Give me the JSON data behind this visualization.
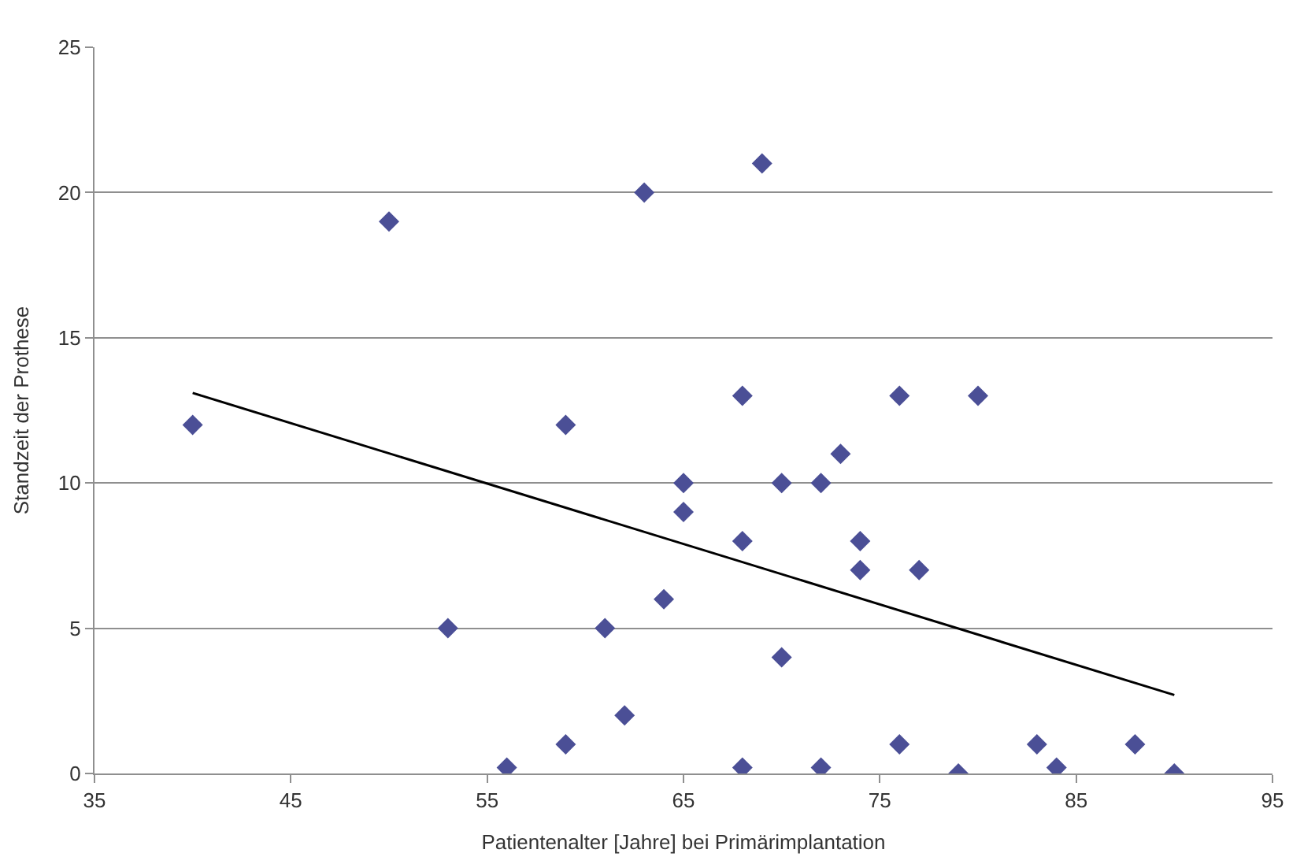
{
  "chart_data": {
    "type": "scatter",
    "xlabel": "Patientenalter [Jahre] bei Primärimplantation",
    "ylabel": "Standzeit der Prothese",
    "xlim": [
      35,
      95
    ],
    "xticks": [
      35,
      45,
      55,
      65,
      75,
      85,
      95
    ],
    "ylim": [
      0,
      25
    ],
    "yticks": [
      0,
      5,
      10,
      15,
      20,
      25
    ],
    "grid": "y",
    "marker": "diamond",
    "series": [
      {
        "color": "#4b4f96",
        "x": [
          40,
          50,
          53,
          56,
          59,
          59,
          61,
          62,
          63,
          64,
          65,
          65,
          68,
          68,
          68,
          69,
          70,
          70,
          72,
          72,
          73,
          74,
          74,
          76,
          76,
          77,
          79,
          80,
          83,
          84,
          88,
          90
        ],
        "values": [
          12,
          19,
          5,
          0.2,
          12,
          1,
          5,
          2,
          20,
          6,
          10,
          9,
          13,
          8,
          0.2,
          21,
          10,
          4,
          10,
          0.2,
          11,
          8,
          7,
          13,
          1,
          7,
          0,
          13,
          1,
          0.2,
          1,
          0
        ]
      },
      {
        "type": "line",
        "marker": "none",
        "color": "#000000",
        "x": [
          40,
          90
        ],
        "values": [
          13.1,
          2.7
        ]
      }
    ]
  }
}
